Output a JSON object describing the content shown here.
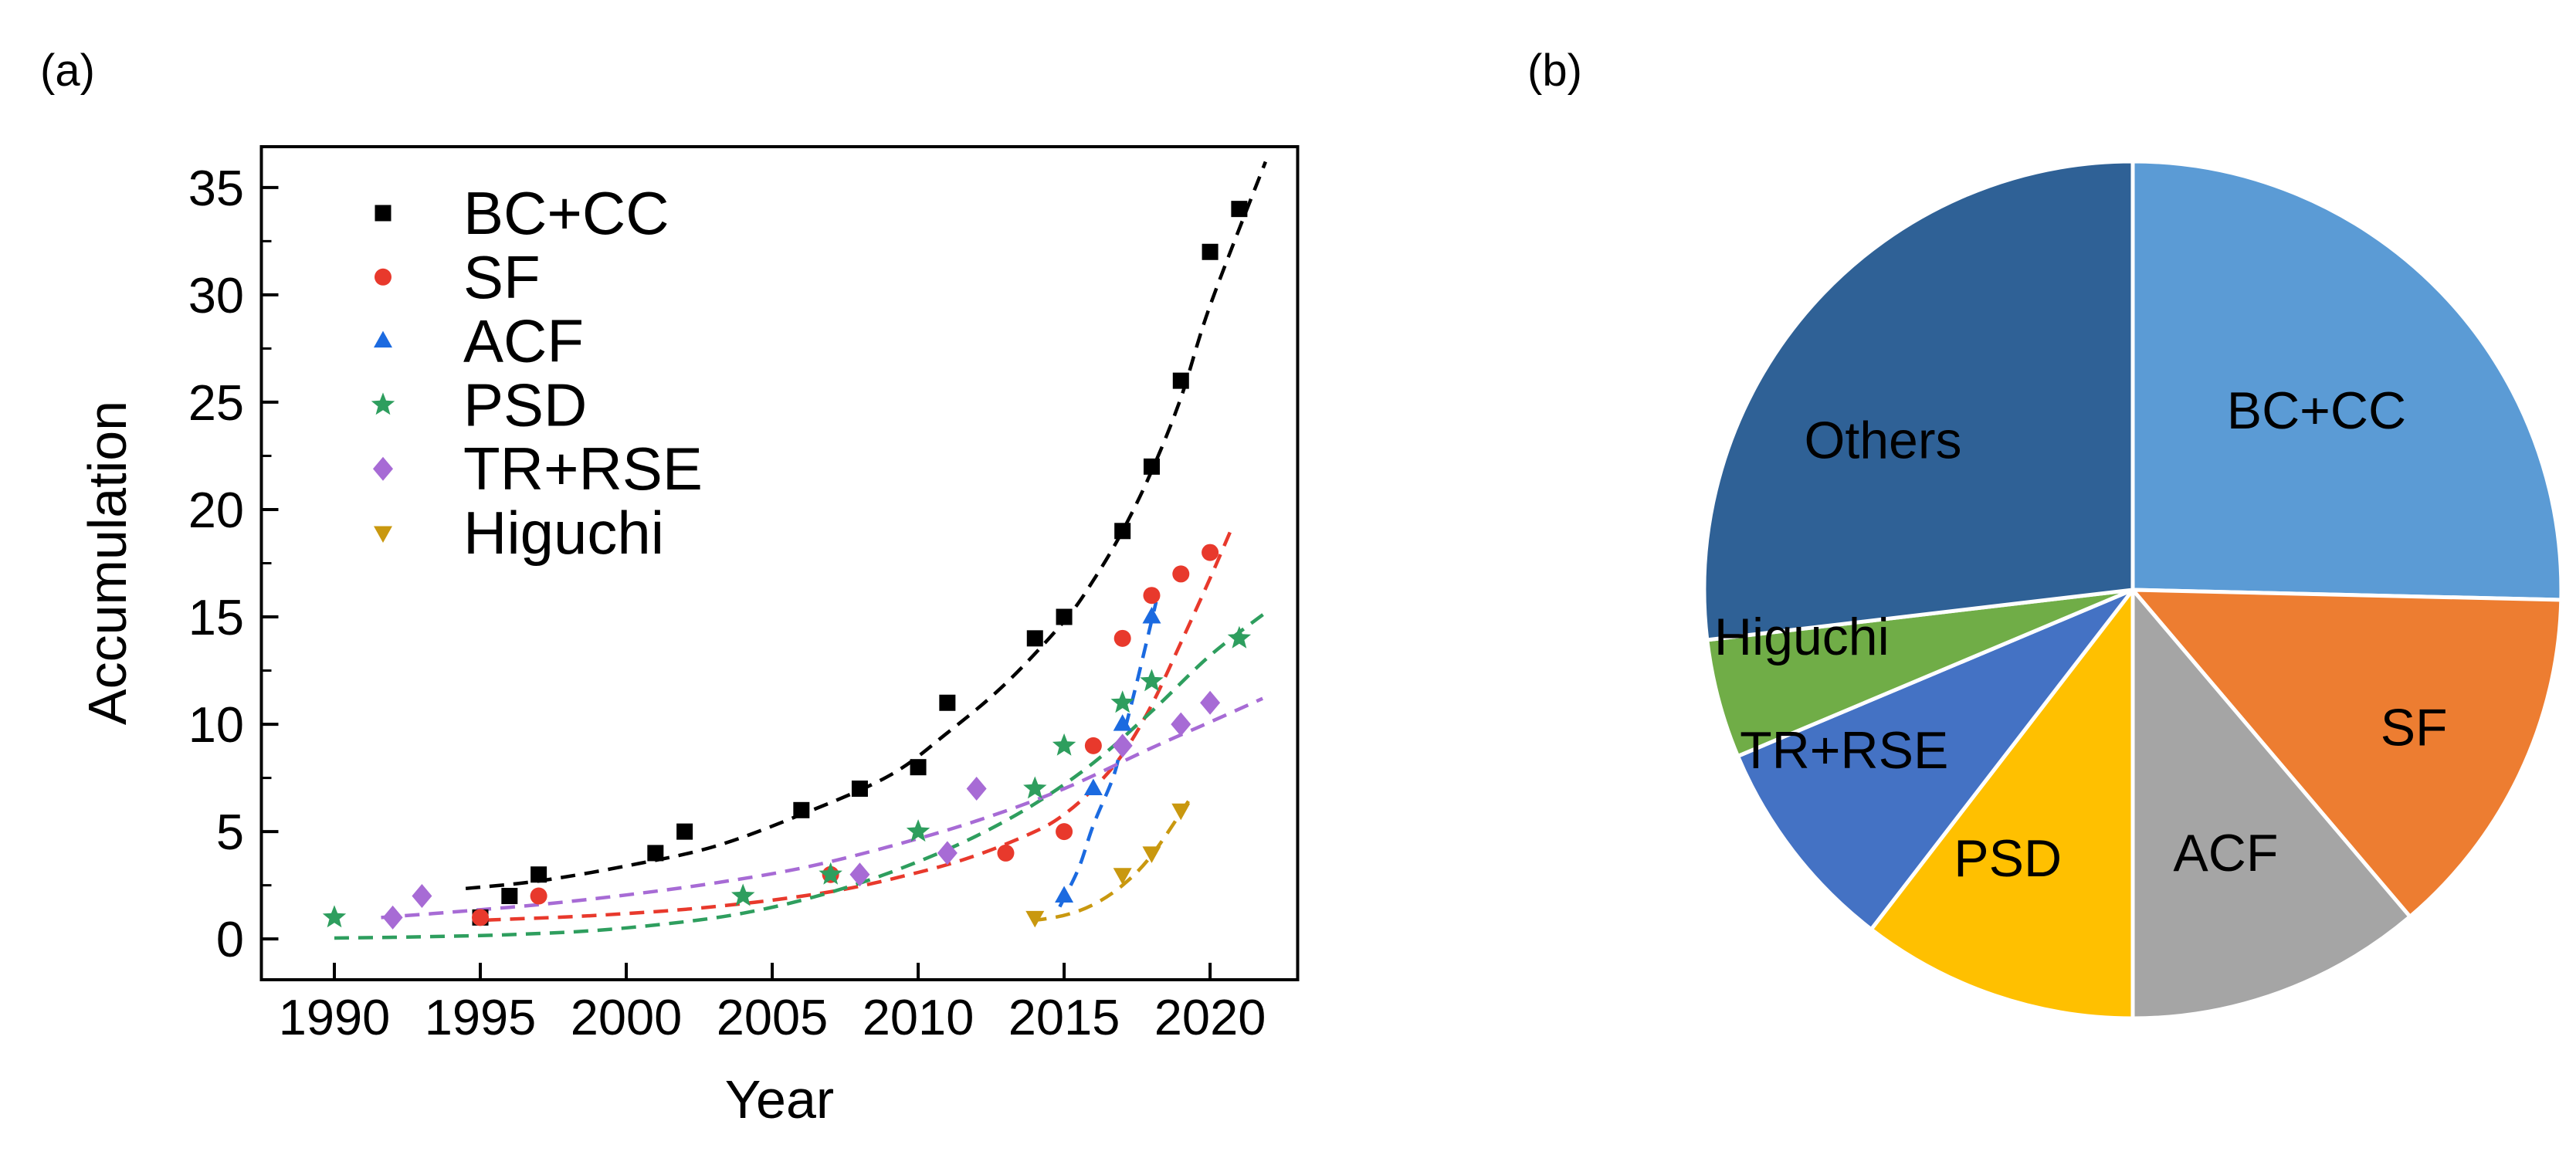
{
  "panels": {
    "a_label": "(a)",
    "b_label": "(b)"
  },
  "chart_data": [
    {
      "id": "accumulation-vs-year",
      "type": "scatter",
      "xlabel": "Year",
      "ylabel": "Accumulation",
      "xlim": [
        1987.5,
        2023.0
      ],
      "ylim": [
        -1.9,
        36.9
      ],
      "xticks": [
        1990,
        1995,
        2000,
        2005,
        2010,
        2015,
        2020
      ],
      "yticks": [
        0,
        5,
        10,
        15,
        20,
        25,
        30,
        35
      ],
      "yticks_minor": [
        2.5,
        7.5,
        12.5,
        17.5,
        22.5,
        27.5,
        32.5
      ],
      "grid": false,
      "legend_position": "upper-left-inside",
      "series": [
        {
          "name": "BC+CC",
          "marker": "square",
          "color": "#000000",
          "line_style": "dashed",
          "points": [
            [
              1995,
              1
            ],
            [
              1996,
              2
            ],
            [
              1997,
              3
            ],
            [
              2001,
              4
            ],
            [
              2002,
              5
            ],
            [
              2006,
              6
            ],
            [
              2008,
              7
            ],
            [
              2010,
              8
            ],
            [
              2011,
              11
            ],
            [
              2014,
              14
            ],
            [
              2015,
              15
            ],
            [
              2017,
              19
            ],
            [
              2018,
              22
            ],
            [
              2019,
              26
            ],
            [
              2020,
              32
            ],
            [
              2021,
              34
            ]
          ],
          "trend": [
            [
              1994.5,
              2.35
            ],
            [
              1997,
              2.7
            ],
            [
              2000,
              3.4
            ],
            [
              2003,
              4.3
            ],
            [
              2006,
              5.8
            ],
            [
              2009,
              7.6
            ],
            [
              2011,
              9.6
            ],
            [
              2013,
              11.9
            ],
            [
              2015,
              14.8
            ],
            [
              2016,
              16.7
            ],
            [
              2017,
              19.0
            ],
            [
              2018,
              21.8
            ],
            [
              2019,
              25.2
            ],
            [
              2020,
              29.5
            ],
            [
              2021.9,
              36.2
            ]
          ]
        },
        {
          "name": "SF",
          "marker": "circle",
          "color": "#E8392C",
          "line_style": "dashed",
          "points": [
            [
              1995,
              1
            ],
            [
              1997,
              2
            ],
            [
              2007,
              3
            ],
            [
              2013,
              4
            ],
            [
              2015,
              5
            ],
            [
              2016,
              9
            ],
            [
              2017,
              14
            ],
            [
              2018,
              16
            ],
            [
              2019,
              17
            ],
            [
              2020,
              18
            ]
          ],
          "trend": [
            [
              1995.2,
              0.88
            ],
            [
              1999,
              1.1
            ],
            [
              2003,
              1.5
            ],
            [
              2007,
              2.2
            ],
            [
              2010,
              3.1
            ],
            [
              2012,
              3.9
            ],
            [
              2014,
              5.0
            ],
            [
              2015,
              5.8
            ],
            [
              2016,
              7.0
            ],
            [
              2017,
              8.6
            ],
            [
              2018,
              10.9
            ],
            [
              2019,
              13.8
            ],
            [
              2020,
              16.8
            ],
            [
              2020.7,
              19.0
            ]
          ]
        },
        {
          "name": "ACF",
          "marker": "triangle-up",
          "color": "#1B6AE0",
          "line_style": "dashed",
          "points": [
            [
              2015,
              2
            ],
            [
              2016,
              7
            ],
            [
              2017,
              10
            ],
            [
              2018,
              15
            ]
          ],
          "trend": [
            [
              2014.85,
              1.5
            ],
            [
              2015.5,
              3.3
            ],
            [
              2016,
              5.3
            ],
            [
              2016.7,
              7.6
            ],
            [
              2017,
              9.3
            ],
            [
              2017.5,
              12.0
            ],
            [
              2018.15,
              15.7
            ]
          ]
        },
        {
          "name": "PSD",
          "marker": "star",
          "color": "#2E9E5E",
          "line_style": "dashed",
          "points": [
            [
              1990,
              1
            ],
            [
              2004,
              2
            ],
            [
              2007,
              3
            ],
            [
              2010,
              5
            ],
            [
              2014,
              7
            ],
            [
              2015,
              9
            ],
            [
              2017,
              11
            ],
            [
              2018,
              12
            ],
            [
              2021,
              14
            ]
          ],
          "trend": [
            [
              1990,
              0.04
            ],
            [
              1993,
              0.1
            ],
            [
              1996,
              0.2
            ],
            [
              1999,
              0.4
            ],
            [
              2002,
              0.8
            ],
            [
              2004,
              1.2
            ],
            [
              2006,
              1.8
            ],
            [
              2008,
              2.6
            ],
            [
              2010,
              3.6
            ],
            [
              2012,
              4.8
            ],
            [
              2014,
              6.3
            ],
            [
              2016,
              8.2
            ],
            [
              2018,
              10.6
            ],
            [
              2020,
              13.2
            ],
            [
              2022,
              15.3
            ]
          ]
        },
        {
          "name": "TR+RSE",
          "marker": "diamond",
          "color": "#A76BD5",
          "line_style": "dashed",
          "points": [
            [
              1992,
              1
            ],
            [
              1993,
              2
            ],
            [
              2008,
              3
            ],
            [
              2011,
              4
            ],
            [
              2012,
              7
            ],
            [
              2017,
              9
            ],
            [
              2019,
              10
            ],
            [
              2020,
              11
            ]
          ],
          "trend": [
            [
              1991.6,
              1.0
            ],
            [
              1994,
              1.25
            ],
            [
              1997,
              1.6
            ],
            [
              2000,
              2.05
            ],
            [
              2003,
              2.6
            ],
            [
              2006,
              3.3
            ],
            [
              2009,
              4.3
            ],
            [
              2012,
              5.5
            ],
            [
              2015,
              7.0
            ],
            [
              2018,
              8.9
            ],
            [
              2020,
              10.1
            ],
            [
              2021.8,
              11.2
            ]
          ]
        },
        {
          "name": "Higuchi",
          "marker": "triangle-down",
          "color": "#C9980F",
          "line_style": "dashed",
          "points": [
            [
              2014,
              1
            ],
            [
              2017,
              3
            ],
            [
              2018,
              4
            ],
            [
              2019,
              6
            ]
          ],
          "trend": [
            [
              2013.9,
              0.85
            ],
            [
              2015,
              1.1
            ],
            [
              2016,
              1.6
            ],
            [
              2017,
              2.5
            ],
            [
              2018,
              3.9
            ],
            [
              2019.3,
              6.5
            ]
          ]
        }
      ]
    },
    {
      "id": "method-share-pie",
      "type": "pie",
      "start_angle_deg": 0,
      "direction": "clockwise",
      "slice_border_color": "#ffffff",
      "slices": [
        {
          "label": "BC+CC",
          "value": 34,
          "color": "#5B9BD5",
          "label_angle_deg": 45.6,
          "label_r_frac": 0.6
        },
        {
          "label": "SF",
          "value": 18,
          "color": "#ED7D31",
          "label_angle_deg": 116,
          "label_r_frac": 0.73
        },
        {
          "label": "ACF",
          "value": 15,
          "color": "#A5A5A5",
          "label_angle_deg": 160.5,
          "label_r_frac": 0.65
        },
        {
          "label": "PSD",
          "value": 14,
          "color": "#FFC000",
          "label_angle_deg": 205,
          "label_r_frac": 0.69
        },
        {
          "label": "TR+RSE",
          "value": 11,
          "color": "#4472C4",
          "label_angle_deg": 241,
          "label_r_frac": 0.77
        },
        {
          "label": "Higuchi",
          "value": 6,
          "color": "#70AD47",
          "label_angle_deg": 262,
          "label_r_frac": 0.78
        },
        {
          "label": "Others",
          "value": 36,
          "color": "#2F6196",
          "label_angle_deg": 301,
          "label_r_frac": 0.68
        }
      ]
    }
  ]
}
